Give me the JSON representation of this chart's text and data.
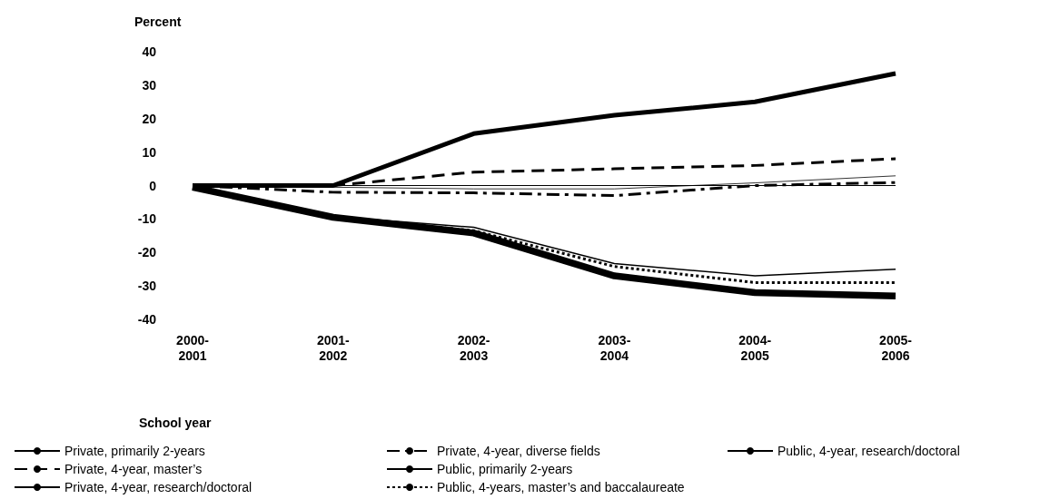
{
  "chart_data": {
    "type": "line",
    "ylabel": "Percent",
    "xlabel": "School year",
    "categories": [
      "2000-\n2001",
      "2001-\n2002",
      "2002-\n2003",
      "2003-\n2004",
      "2004-\n2005",
      "2005-\n2006"
    ],
    "ylim": [
      -40,
      40
    ],
    "yticks": [
      -40,
      -30,
      -20,
      -10,
      0,
      10,
      20,
      30,
      40
    ],
    "grid": false,
    "legend": "bottom",
    "ref_lines": [
      {
        "axis": "y",
        "value": 0,
        "color": "#000000",
        "line_style": "solid"
      }
    ],
    "marker": "none",
    "series": [
      {
        "name": "Private, primarily 2-years",
        "color": "#000000",
        "line_style": "solid",
        "values": [
          0,
          0,
          15.5,
          21,
          25,
          33.5
        ]
      },
      {
        "name": "Private, 4-year, master’s",
        "color": "#000000",
        "line_style": "dashed",
        "values": [
          0,
          0,
          4,
          5,
          6,
          8
        ]
      },
      {
        "name": "Private, 4-year, research/doctoral",
        "color": "#000000",
        "line_style": "solid",
        "values": [
          0,
          -0.5,
          -1,
          -1,
          0.8,
          2.9
        ]
      },
      {
        "name": "Private, 4-year, diverse fields",
        "color": "#000000",
        "line_style": "dashed",
        "values": [
          0,
          -2,
          -2.2,
          -3,
          0,
          0.9
        ]
      },
      {
        "name": "Public, primarily 2-years",
        "color": "#000000",
        "line_style": "solid",
        "values": [
          -0.5,
          -9.2,
          -12.5,
          -23.3,
          -27,
          -25
        ]
      },
      {
        "name": "Public, 4-years, master’s and baccalaureate",
        "color": "#000000",
        "line_style": "dotted",
        "values": [
          -0.5,
          -9.5,
          -13.5,
          -24.2,
          -29,
          -29
        ]
      },
      {
        "name": "Public, 4-year, research/doctoral",
        "color": "#000000",
        "line_style": "solid",
        "values": [
          -0.5,
          -9.5,
          -14.2,
          -27,
          -32,
          -33
        ]
      }
    ]
  }
}
